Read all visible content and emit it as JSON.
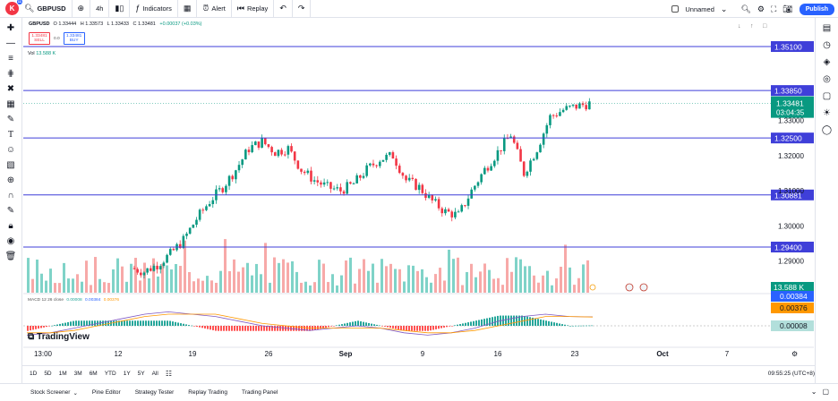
{
  "toolbar": {
    "avatar_letter": "K",
    "avatar_badge": "11",
    "symbol": "GBPUSD",
    "interval": "4h",
    "indicators": "Indicators",
    "alert": "Alert",
    "replay": "Replay",
    "layout_name": "Unnamed",
    "publish": "Publish"
  },
  "legend": {
    "open": "O 1.33444",
    "high": "H 1.33573",
    "low": "L 1.33433",
    "close": "C 1.33481",
    "change": "+0.00037 (+0.03%)"
  },
  "trade": {
    "sell_price": "1.33481",
    "sell_label": "SELL",
    "spread": "0.0",
    "buy_price": "1.33481",
    "buy_label": "BUY"
  },
  "volume_label": "Vol",
  "volume_value": "13.588 K",
  "macd_label": {
    "name": "MACD 12 26 close",
    "v1": "0.00008",
    "v2": "0.00384",
    "v3": "0.00376"
  },
  "logo_text": "TradingView",
  "chart_data": {
    "type": "candlestick",
    "symbol": "GBPUSD",
    "interval": "4h",
    "yticks": [
      "1.33000",
      "1.32000",
      "1.31000",
      "1.30000",
      "1.29000"
    ],
    "horizontal_levels": [
      "1.35100",
      "1.33850",
      "1.32500",
      "1.30881",
      "1.29400"
    ],
    "current_price": "1.33481",
    "countdown": "03:04:35",
    "volume_axis_label": "13.588 K",
    "macd_axis_labels": [
      "0.00384",
      "0.00376",
      "0.00008"
    ],
    "x_tick_labels": [
      "13:00",
      "12",
      "19",
      "26",
      "Sep",
      "9",
      "16",
      "23",
      "Oct",
      "7"
    ],
    "close_path": [
      1.288,
      1.287,
      1.289,
      1.292,
      1.296,
      1.302,
      1.307,
      1.311,
      1.316,
      1.322,
      1.324,
      1.321,
      1.322,
      1.316,
      1.313,
      1.311,
      1.31,
      1.312,
      1.316,
      1.319,
      1.32,
      1.313,
      1.311,
      1.307,
      1.304,
      1.303,
      1.31,
      1.316,
      1.321,
      1.326,
      1.315,
      1.322,
      1.331,
      1.333,
      1.334,
      1.3348
    ],
    "macd_line": [
      -0.004,
      -0.003,
      -0.001,
      0.001,
      0.003,
      0.005,
      0.006,
      0.005,
      0.004,
      0.002,
      0.0,
      -0.001,
      -0.002,
      -0.001,
      0.0,
      -0.001,
      -0.003,
      -0.004,
      -0.003,
      -0.001,
      0.002,
      0.004,
      0.005,
      0.004,
      0.00384
    ],
    "signal_line": [
      -0.003,
      -0.003,
      -0.002,
      0.0,
      0.002,
      0.004,
      0.005,
      0.005,
      0.005,
      0.003,
      0.001,
      0.0,
      -0.001,
      -0.001,
      -0.001,
      -0.001,
      -0.002,
      -0.003,
      -0.003,
      -0.002,
      0.0,
      0.002,
      0.004,
      0.004,
      0.00376
    ]
  },
  "bottom_tools": {
    "ranges": [
      "1D",
      "5D",
      "1M",
      "3M",
      "6M",
      "YTD",
      "1Y",
      "5Y",
      "All"
    ],
    "time": "09:55:25 (UTC+8)"
  },
  "footer": {
    "tabs": [
      "Stock Screener",
      "Pine Editor",
      "Strategy Tester",
      "Replay Trading",
      "Trading Panel"
    ]
  },
  "colors": {
    "level_line": "#3f3fd9",
    "level_label_bg": "#3f3fd9",
    "price_label_bg": "#089981",
    "bull": "#089981",
    "bear": "#f23645",
    "macd_line": "#7e57c2",
    "signal_line": "#ff9800"
  }
}
